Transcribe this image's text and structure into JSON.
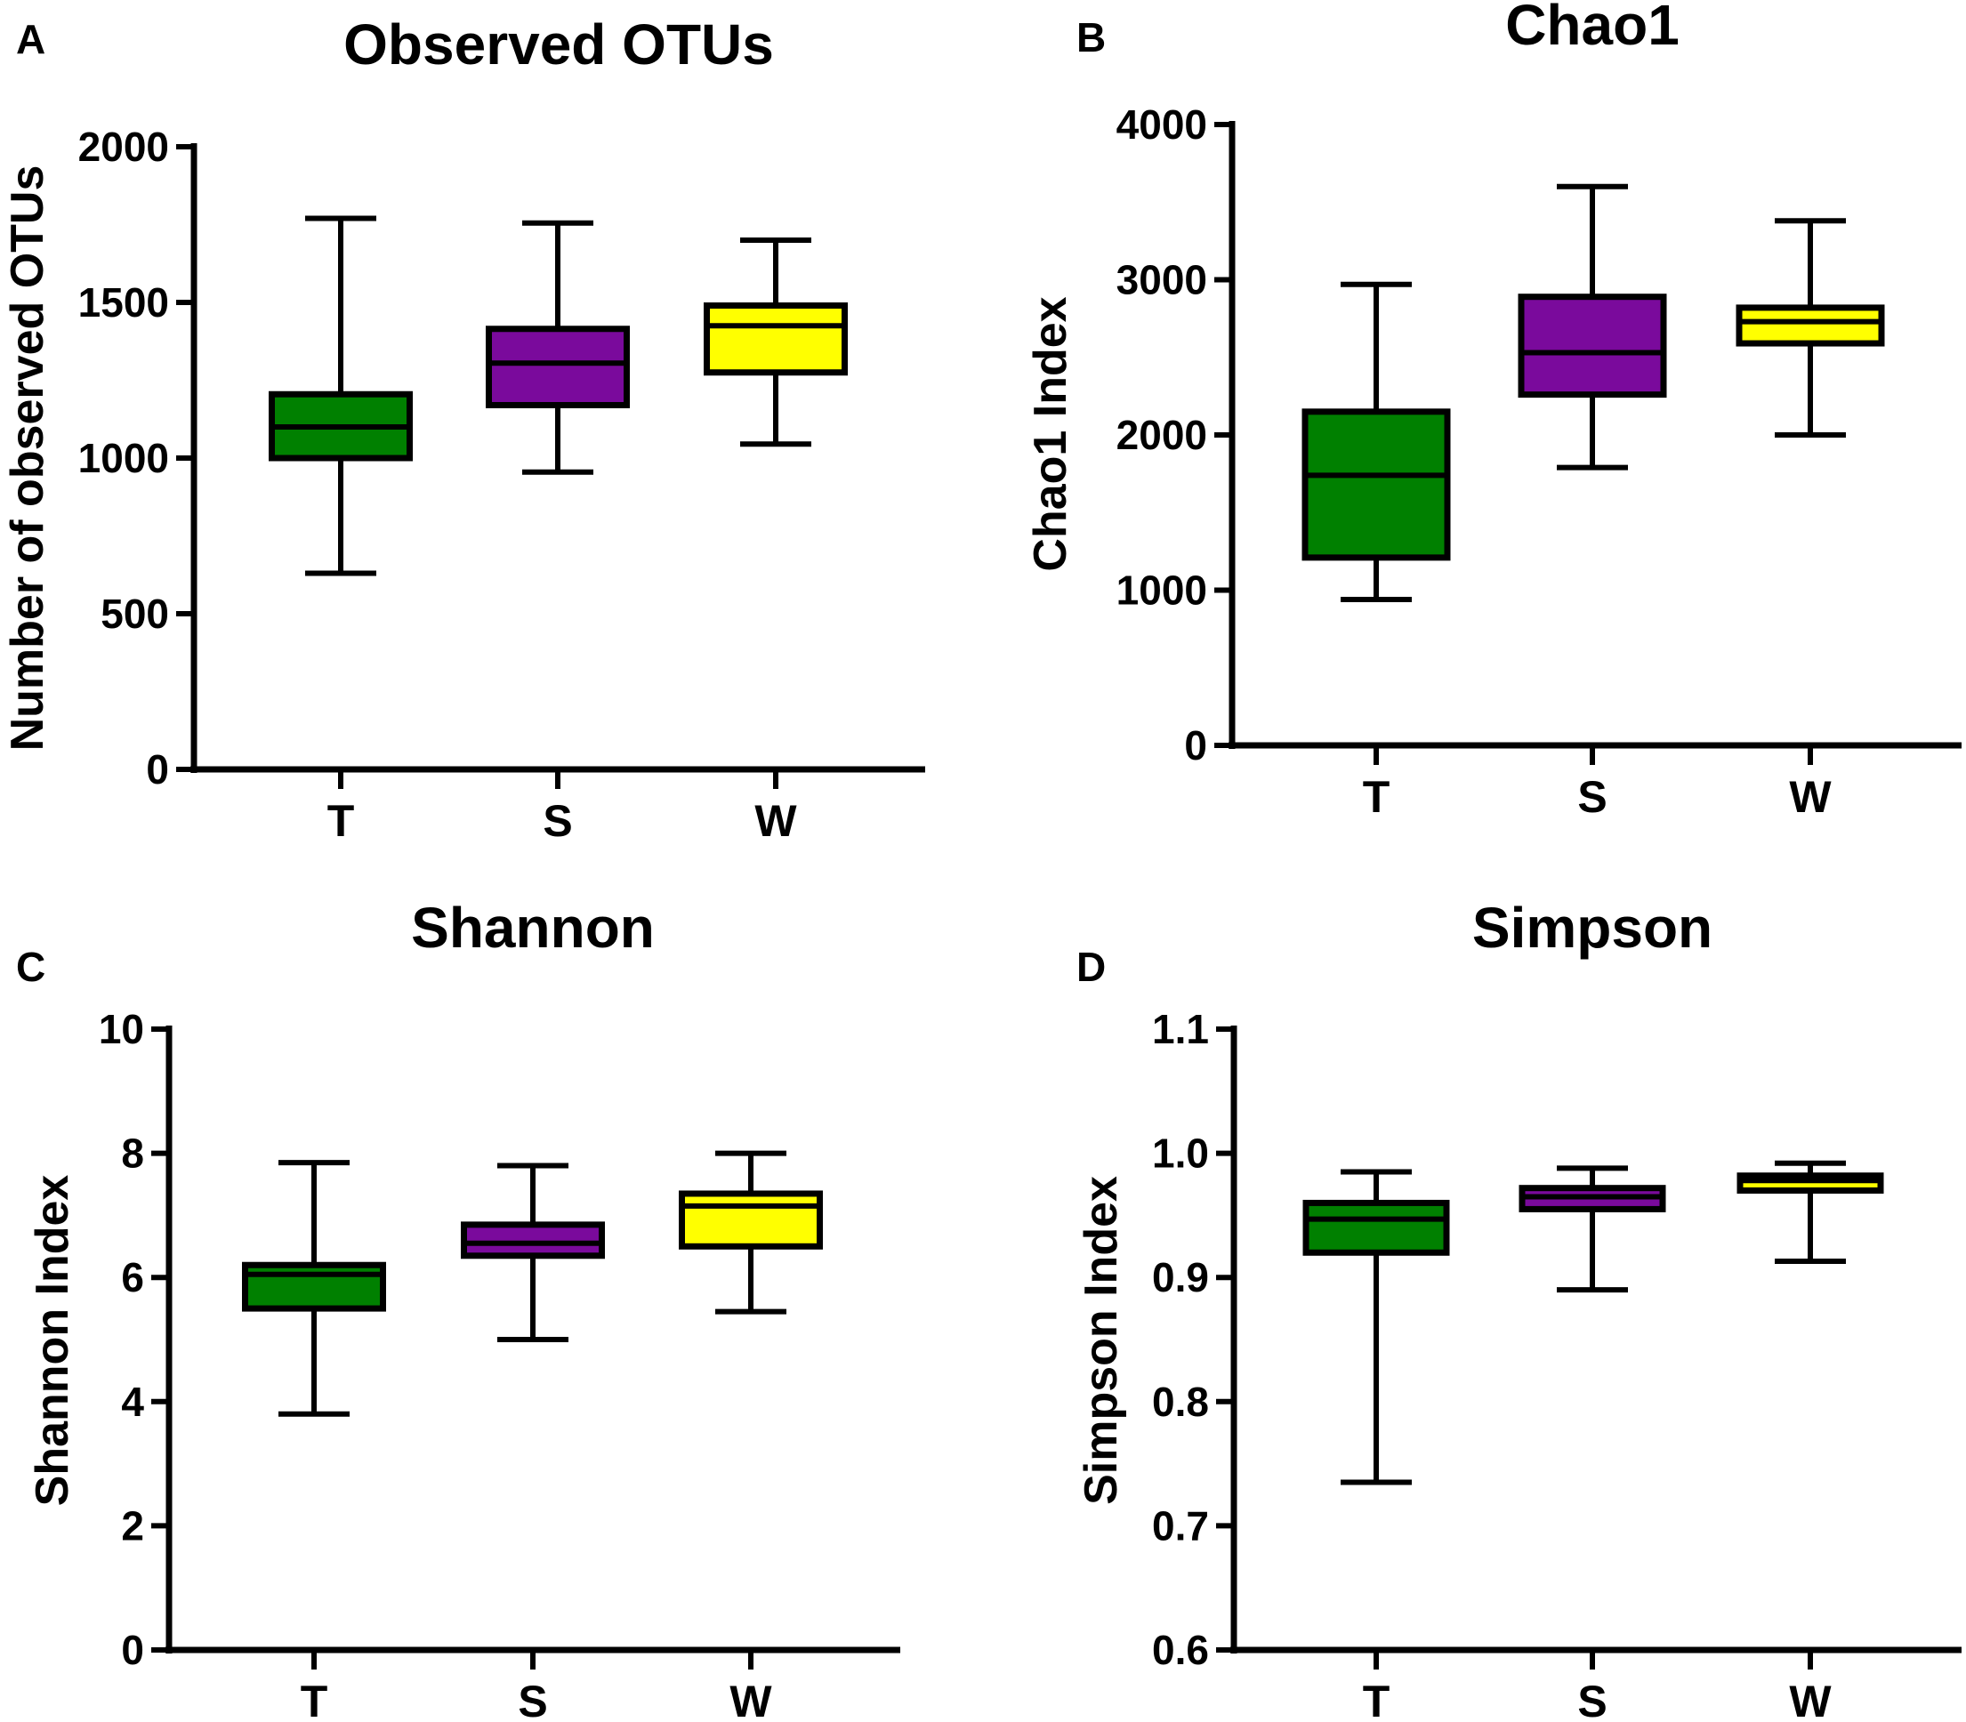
{
  "chart_data": [
    {
      "type": "box",
      "panel_label": "A",
      "title": "Observed OTUs",
      "xlabel": "",
      "ylabel": "Number of observed OTUs",
      "ylim": [
        0,
        2000
      ],
      "yticks": [
        0,
        500,
        1000,
        1500,
        2000
      ],
      "categories": [
        "T",
        "S",
        "W"
      ],
      "series": [
        {
          "name": "T",
          "color": "#008000",
          "min": 630,
          "q1": 1000,
          "median": 1100,
          "q3": 1205,
          "max": 1770
        },
        {
          "name": "S",
          "color": "#7a0a9c",
          "min": 955,
          "q1": 1170,
          "median": 1305,
          "q3": 1415,
          "max": 1755
        },
        {
          "name": "W",
          "color": "#ffff00",
          "min": 1045,
          "q1": 1275,
          "median": 1425,
          "q3": 1490,
          "max": 1700
        }
      ]
    },
    {
      "type": "box",
      "panel_label": "B",
      "title": "Chao1",
      "xlabel": "",
      "ylabel": "Chao1 Index",
      "ylim": [
        0,
        4000
      ],
      "yticks": [
        0,
        1000,
        2000,
        3000,
        4000
      ],
      "categories": [
        "T",
        "S",
        "W"
      ],
      "series": [
        {
          "name": "T",
          "color": "#008000",
          "min": 940,
          "q1": 1210,
          "median": 1740,
          "q3": 2150,
          "max": 2970
        },
        {
          "name": "S",
          "color": "#7a0a9c",
          "min": 1790,
          "q1": 2260,
          "median": 2530,
          "q3": 2890,
          "max": 3600
        },
        {
          "name": "W",
          "color": "#ffff00",
          "min": 2000,
          "q1": 2590,
          "median": 2730,
          "q3": 2820,
          "max": 3380
        }
      ]
    },
    {
      "type": "box",
      "panel_label": "C",
      "title": "Shannon",
      "xlabel": "",
      "ylabel": "Shannon Index",
      "ylim": [
        0,
        10
      ],
      "yticks": [
        0,
        2,
        4,
        6,
        8,
        10
      ],
      "categories": [
        "T",
        "S",
        "W"
      ],
      "series": [
        {
          "name": "T",
          "color": "#008000",
          "min": 3.8,
          "q1": 5.5,
          "median": 6.05,
          "q3": 6.2,
          "max": 7.85
        },
        {
          "name": "S",
          "color": "#7a0a9c",
          "min": 5.0,
          "q1": 6.35,
          "median": 6.55,
          "q3": 6.85,
          "max": 7.8
        },
        {
          "name": "W",
          "color": "#ffff00",
          "min": 5.45,
          "q1": 6.5,
          "median": 7.15,
          "q3": 7.35,
          "max": 8.0
        }
      ]
    },
    {
      "type": "box",
      "panel_label": "D",
      "title": "Simpson",
      "xlabel": "",
      "ylabel": "Simpson Index",
      "ylim": [
        0.6,
        1.1
      ],
      "yticks": [
        "0.6",
        "0.7",
        "0.8",
        "0.9",
        "1.0",
        "1.1"
      ],
      "categories": [
        "T",
        "S",
        "W"
      ],
      "series": [
        {
          "name": "T",
          "color": "#008000",
          "min": 0.735,
          "q1": 0.92,
          "median": 0.947,
          "q3": 0.96,
          "max": 0.985
        },
        {
          "name": "S",
          "color": "#7a0a9c",
          "min": 0.89,
          "q1": 0.955,
          "median": 0.965,
          "q3": 0.972,
          "max": 0.988
        },
        {
          "name": "W",
          "color": "#ffff00",
          "min": 0.913,
          "q1": 0.97,
          "median": 0.978,
          "q3": 0.982,
          "max": 0.992
        }
      ]
    }
  ]
}
